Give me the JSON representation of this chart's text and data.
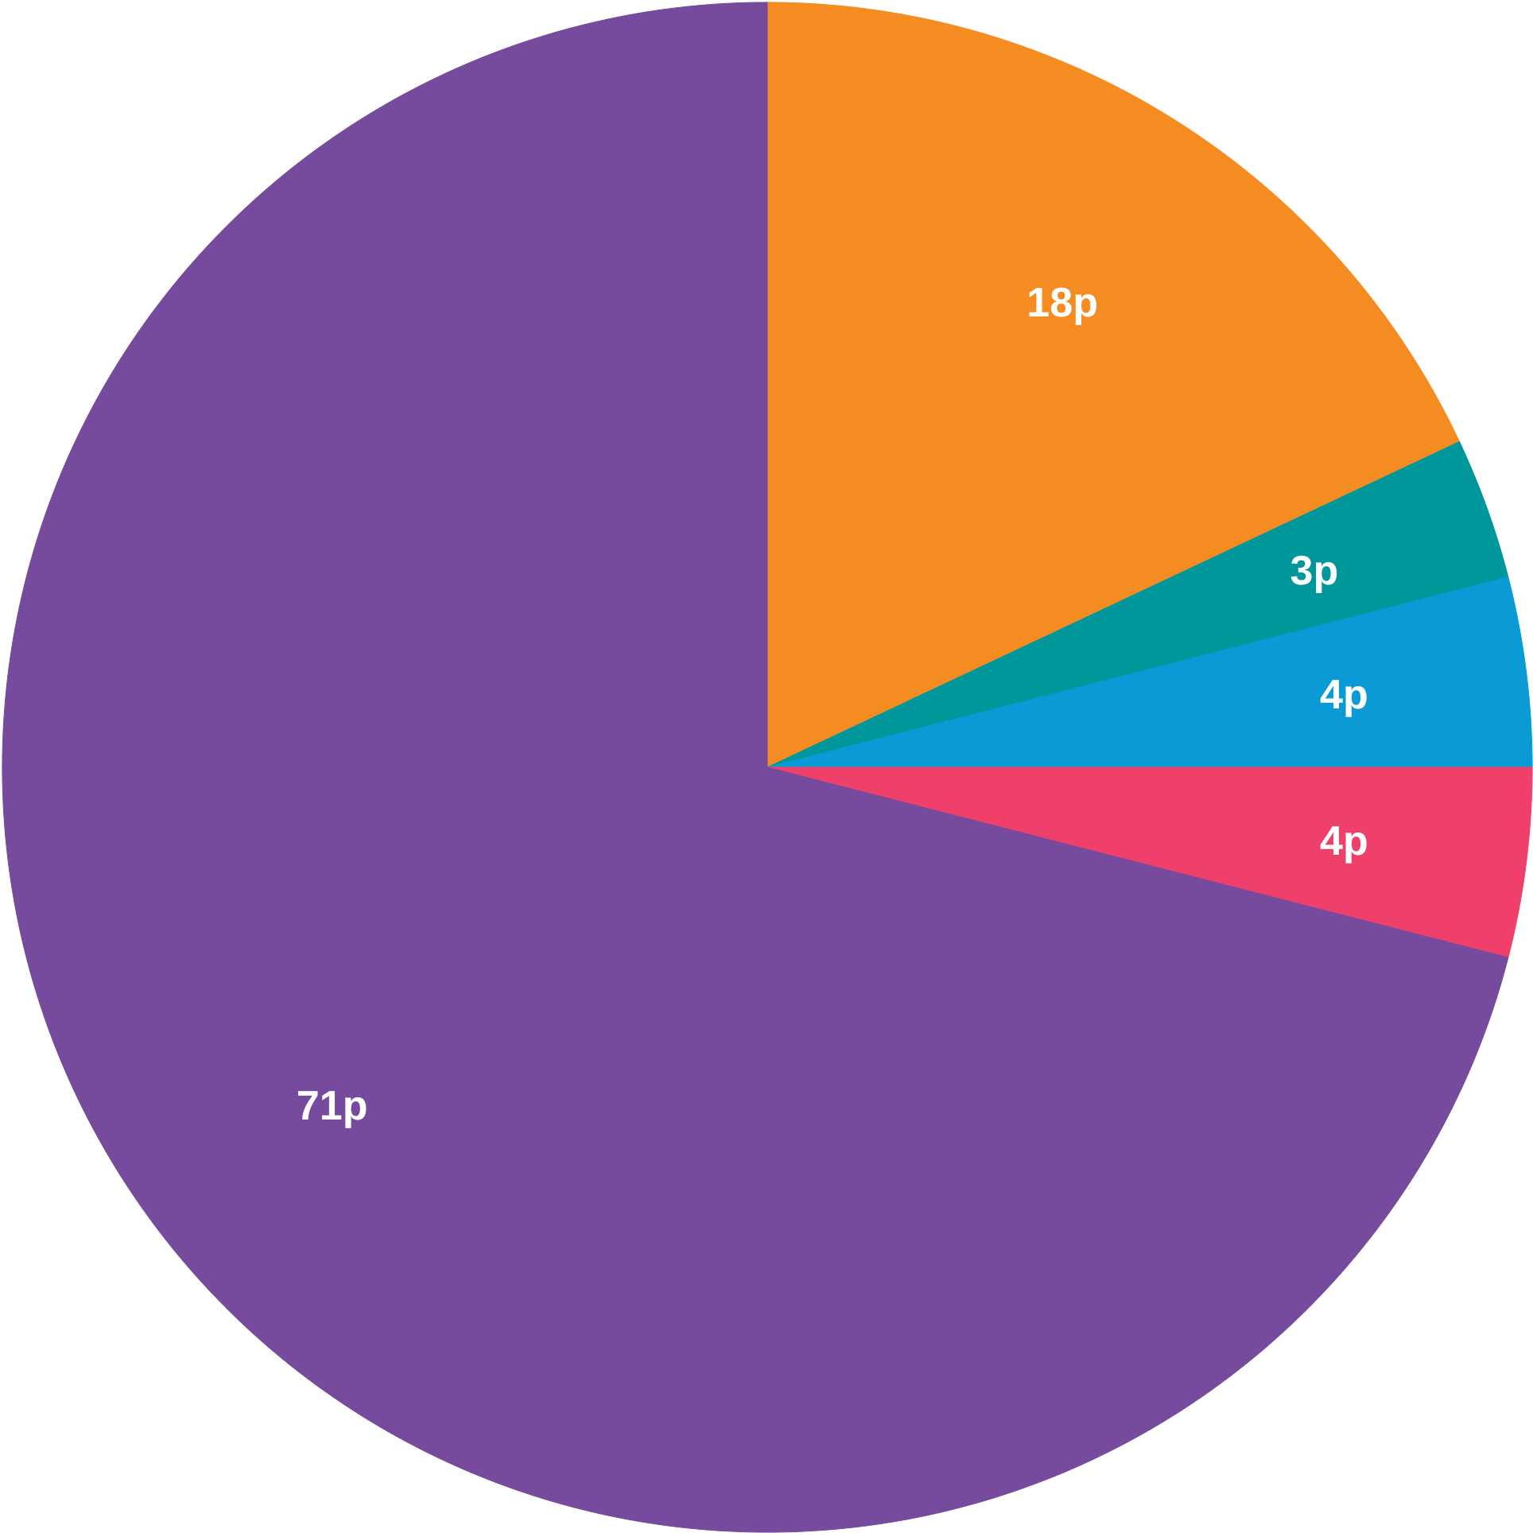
{
  "chart_data": {
    "type": "pie",
    "categories": [
      null,
      null,
      null,
      null,
      null
    ],
    "values": [
      18,
      3,
      4,
      4,
      71
    ],
    "colors": [
      "#f58c21",
      "#00979a",
      "#0a9ad6",
      "#ee406a",
      "#764a9c"
    ],
    "value_labels": [
      "18p",
      "3p",
      "4p",
      "4p",
      "71p"
    ]
  }
}
